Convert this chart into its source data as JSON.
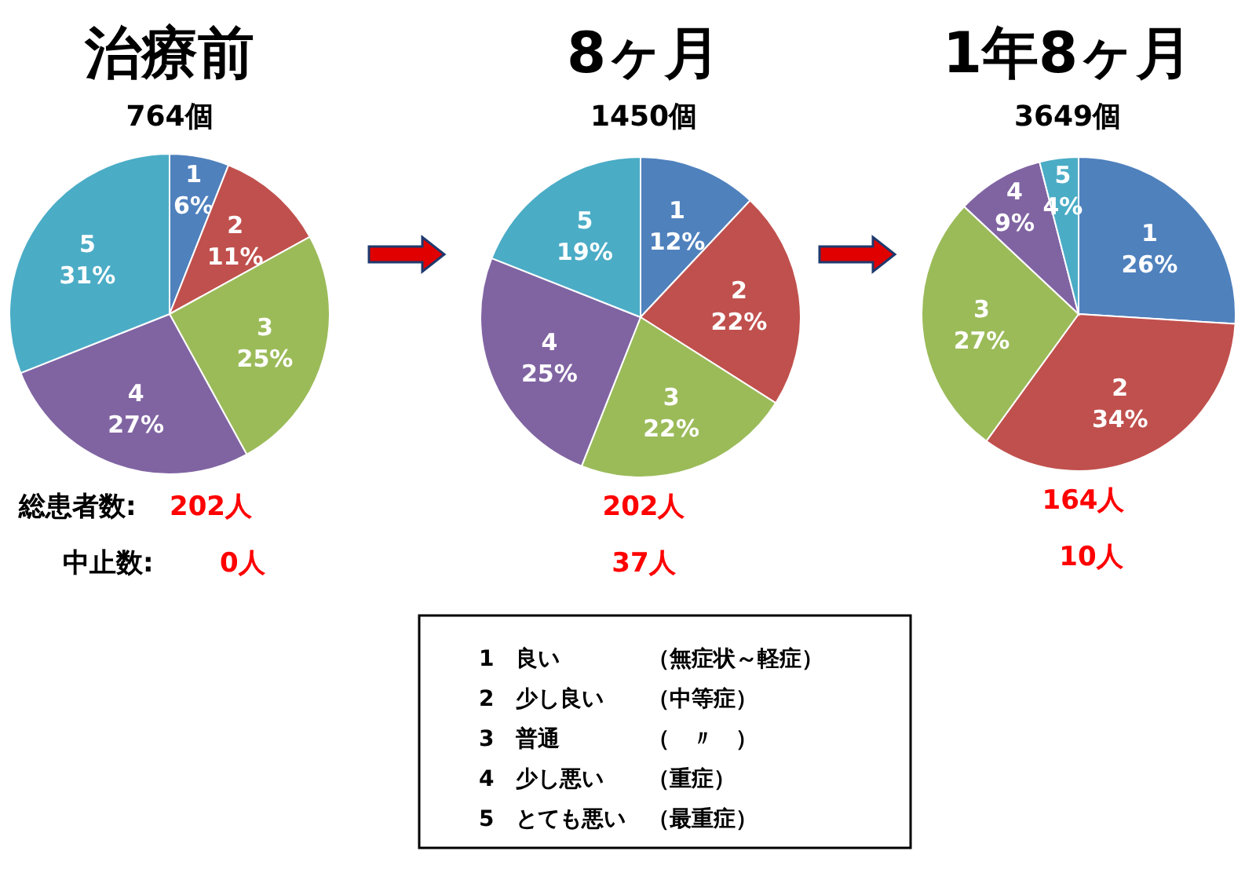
{
  "chart_data": [
    {
      "type": "pie",
      "title": "治療前",
      "subtitle": "764個",
      "categories": [
        "1",
        "2",
        "3",
        "4",
        "5"
      ],
      "values": [
        6,
        11,
        25,
        27,
        31
      ],
      "value_labels": [
        "6%",
        "11%",
        "25%",
        "27%",
        "31%"
      ],
      "colors": [
        "#4f81bd",
        "#c0504d",
        "#9bbb59",
        "#8064a2",
        "#4bacc6"
      ],
      "annotations": [
        "総患者数:",
        "202人",
        "中止数:",
        "0人"
      ]
    },
    {
      "type": "pie",
      "title": "8ヶ月",
      "subtitle": "1450個",
      "categories": [
        "1",
        "2",
        "3",
        "4",
        "5"
      ],
      "values": [
        12,
        22,
        22,
        25,
        19
      ],
      "value_labels": [
        "12%",
        "22%",
        "22%",
        "25%",
        "19%"
      ],
      "colors": [
        "#4f81bd",
        "#c0504d",
        "#9bbb59",
        "#8064a2",
        "#4bacc6"
      ],
      "annotations": [
        "202人",
        "37人"
      ]
    },
    {
      "type": "pie",
      "title": "1年8ヶ月",
      "subtitle": "3649個",
      "categories": [
        "1",
        "2",
        "3",
        "4",
        "5"
      ],
      "values": [
        26,
        34,
        27,
        9,
        4
      ],
      "value_labels": [
        "26%",
        "34%",
        "27%",
        "9%",
        "4%"
      ],
      "colors": [
        "#4f81bd",
        "#c0504d",
        "#9bbb59",
        "#8064a2",
        "#4bacc6"
      ],
      "annotations": [
        "164人",
        "10人"
      ]
    },
    {
      "type": "other",
      "annotations": [
        "1　良い　　　　（無症状～軽症）",
        "2　少し良い　　（中等症）",
        "3　普通　　　　（　〃　）",
        "4　少し悪い　　（重症）",
        "5　とても悪い　（最重症）"
      ]
    }
  ]
}
